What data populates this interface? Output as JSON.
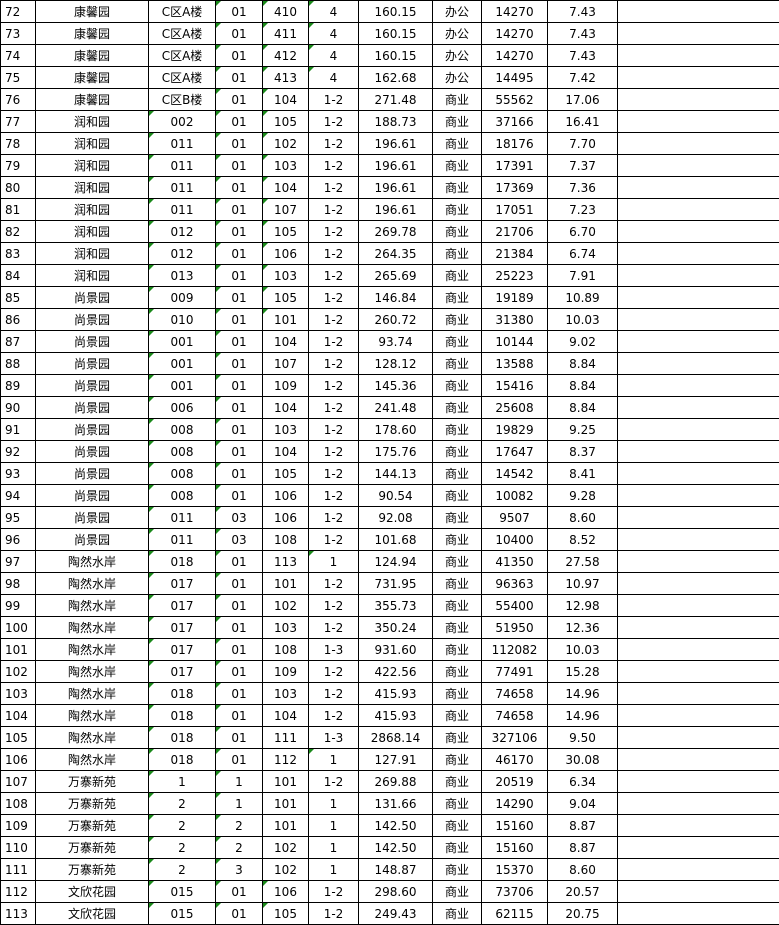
{
  "marker_color": "#1a8a1a",
  "rows": [
    [
      "72",
      "康馨园",
      "C区A楼",
      "01",
      "410",
      "4",
      "160.15",
      "办公",
      "14270",
      "7.43",
      ""
    ],
    [
      "73",
      "康馨园",
      "C区A楼",
      "01",
      "411",
      "4",
      "160.15",
      "办公",
      "14270",
      "7.43",
      ""
    ],
    [
      "74",
      "康馨园",
      "C区A楼",
      "01",
      "412",
      "4",
      "160.15",
      "办公",
      "14270",
      "7.43",
      ""
    ],
    [
      "75",
      "康馨园",
      "C区A楼",
      "01",
      "413",
      "4",
      "162.68",
      "办公",
      "14495",
      "7.42",
      ""
    ],
    [
      "76",
      "康馨园",
      "C区B楼",
      "01",
      "104",
      "1-2",
      "271.48",
      "商业",
      "55562",
      "17.06",
      ""
    ],
    [
      "77",
      "润和园",
      "002",
      "01",
      "105",
      "1-2",
      "188.73",
      "商业",
      "37166",
      "16.41",
      ""
    ],
    [
      "78",
      "润和园",
      "011",
      "01",
      "102",
      "1-2",
      "196.61",
      "商业",
      "18176",
      "7.70",
      ""
    ],
    [
      "79",
      "润和园",
      "011",
      "01",
      "103",
      "1-2",
      "196.61",
      "商业",
      "17391",
      "7.37",
      ""
    ],
    [
      "80",
      "润和园",
      "011",
      "01",
      "104",
      "1-2",
      "196.61",
      "商业",
      "17369",
      "7.36",
      ""
    ],
    [
      "81",
      "润和园",
      "011",
      "01",
      "107",
      "1-2",
      "196.61",
      "商业",
      "17051",
      "7.23",
      ""
    ],
    [
      "82",
      "润和园",
      "012",
      "01",
      "105",
      "1-2",
      "269.78",
      "商业",
      "21706",
      "6.70",
      ""
    ],
    [
      "83",
      "润和园",
      "012",
      "01",
      "106",
      "1-2",
      "264.35",
      "商业",
      "21384",
      "6.74",
      ""
    ],
    [
      "84",
      "润和园",
      "013",
      "01",
      "103",
      "1-2",
      "265.69",
      "商业",
      "25223",
      "7.91",
      ""
    ],
    [
      "85",
      "尚景园",
      "009",
      "01",
      "105",
      "1-2",
      "146.84",
      "商业",
      "19189",
      "10.89",
      ""
    ],
    [
      "86",
      "尚景园",
      "010",
      "01",
      "101",
      "1-2",
      "260.72",
      "商业",
      "31380",
      "10.03",
      ""
    ],
    [
      "87",
      "尚景园",
      "001",
      "01",
      "104",
      "1-2",
      "93.74",
      "商业",
      "10144",
      "9.02",
      ""
    ],
    [
      "88",
      "尚景园",
      "001",
      "01",
      "107",
      "1-2",
      "128.12",
      "商业",
      "13588",
      "8.84",
      ""
    ],
    [
      "89",
      "尚景园",
      "001",
      "01",
      "109",
      "1-2",
      "145.36",
      "商业",
      "15416",
      "8.84",
      ""
    ],
    [
      "90",
      "尚景园",
      "006",
      "01",
      "104",
      "1-2",
      "241.48",
      "商业",
      "25608",
      "8.84",
      ""
    ],
    [
      "91",
      "尚景园",
      "008",
      "01",
      "103",
      "1-2",
      "178.60",
      "商业",
      "19829",
      "9.25",
      ""
    ],
    [
      "92",
      "尚景园",
      "008",
      "01",
      "104",
      "1-2",
      "175.76",
      "商业",
      "17647",
      "8.37",
      ""
    ],
    [
      "93",
      "尚景园",
      "008",
      "01",
      "105",
      "1-2",
      "144.13",
      "商业",
      "14542",
      "8.41",
      ""
    ],
    [
      "94",
      "尚景园",
      "008",
      "01",
      "106",
      "1-2",
      "90.54",
      "商业",
      "10082",
      "9.28",
      ""
    ],
    [
      "95",
      "尚景园",
      "011",
      "03",
      "106",
      "1-2",
      "92.08",
      "商业",
      "9507",
      "8.60",
      ""
    ],
    [
      "96",
      "尚景园",
      "011",
      "03",
      "108",
      "1-2",
      "101.68",
      "商业",
      "10400",
      "8.52",
      ""
    ],
    [
      "97",
      "陶然水岸",
      "018",
      "01",
      "113",
      "1",
      "124.94",
      "商业",
      "41350",
      "27.58",
      ""
    ],
    [
      "98",
      "陶然水岸",
      "017",
      "01",
      "101",
      "1-2",
      "731.95",
      "商业",
      "96363",
      "10.97",
      ""
    ],
    [
      "99",
      "陶然水岸",
      "017",
      "01",
      "102",
      "1-2",
      "355.73",
      "商业",
      "55400",
      "12.98",
      ""
    ],
    [
      "100",
      "陶然水岸",
      "017",
      "01",
      "103",
      "1-2",
      "350.24",
      "商业",
      "51950",
      "12.36",
      ""
    ],
    [
      "101",
      "陶然水岸",
      "017",
      "01",
      "108",
      "1-3",
      "931.60",
      "商业",
      "112082",
      "10.03",
      ""
    ],
    [
      "102",
      "陶然水岸",
      "017",
      "01",
      "109",
      "1-2",
      "422.56",
      "商业",
      "77491",
      "15.28",
      ""
    ],
    [
      "103",
      "陶然水岸",
      "018",
      "01",
      "103",
      "1-2",
      "415.93",
      "商业",
      "74658",
      "14.96",
      ""
    ],
    [
      "104",
      "陶然水岸",
      "018",
      "01",
      "104",
      "1-2",
      "415.93",
      "商业",
      "74658",
      "14.96",
      ""
    ],
    [
      "105",
      "陶然水岸",
      "018",
      "01",
      "111",
      "1-3",
      "2868.14",
      "商业",
      "327106",
      "9.50",
      ""
    ],
    [
      "106",
      "陶然水岸",
      "018",
      "01",
      "112",
      "1",
      "127.91",
      "商业",
      "46170",
      "30.08",
      ""
    ],
    [
      "107",
      "万寨新苑",
      "1",
      "1",
      "101",
      "1-2",
      "269.88",
      "商业",
      "20519",
      "6.34",
      ""
    ],
    [
      "108",
      "万寨新苑",
      "2",
      "1",
      "101",
      "1",
      "131.66",
      "商业",
      "14290",
      "9.04",
      ""
    ],
    [
      "109",
      "万寨新苑",
      "2",
      "2",
      "101",
      "1",
      "142.50",
      "商业",
      "15160",
      "8.87",
      ""
    ],
    [
      "110",
      "万寨新苑",
      "2",
      "2",
      "102",
      "1",
      "142.50",
      "商业",
      "15160",
      "8.87",
      ""
    ],
    [
      "111",
      "万寨新苑",
      "2",
      "3",
      "102",
      "1",
      "148.87",
      "商业",
      "15370",
      "8.60",
      ""
    ],
    [
      "112",
      "文欣花园",
      "015",
      "01",
      "106",
      "1-2",
      "298.60",
      "商业",
      "73706",
      "20.57",
      ""
    ],
    [
      "113",
      "文欣花园",
      "015",
      "01",
      "105",
      "1-2",
      "249.43",
      "商业",
      "62115",
      "20.75",
      ""
    ]
  ]
}
